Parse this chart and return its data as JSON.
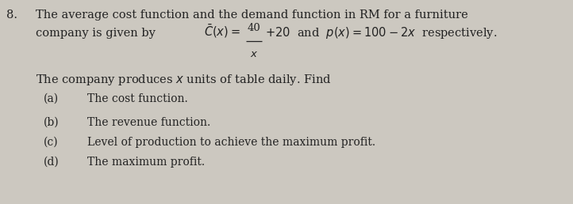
{
  "question_number": "8.",
  "line1": "The average cost function and the demand function in RM for a furniture",
  "line2_company": "company is given by ",
  "line2_Cbar": "$\\bar{C}(x)=$",
  "line2_numerator": "40",
  "line2_denominator": "x",
  "line2_rest": "+20  and  $p(x)=100-2x$  respectively.",
  "line3": "The company produces $x$ units of table daily. Find",
  "items": [
    {
      "label": "(a)",
      "text": "The cost function."
    },
    {
      "label": "(b)",
      "text": "The revenue function."
    },
    {
      "label": "(c)",
      "text": "Level of production to achieve the maximum profit."
    },
    {
      "label": "(d)",
      "text": "The maximum profit."
    }
  ],
  "bg_color": "#ccc8c0",
  "text_color": "#222222",
  "font_size_main": 10.5,
  "font_size_items": 10.0,
  "fig_width": 7.22,
  "fig_height": 2.58,
  "dpi": 100
}
